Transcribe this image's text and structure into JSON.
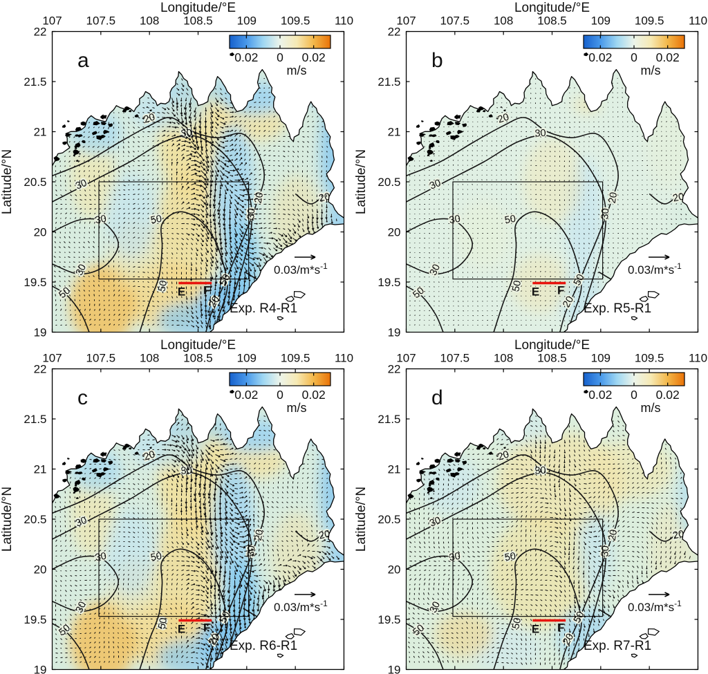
{
  "figure": {
    "x_axis": {
      "label": "Longitude/°E",
      "ticks": [
        "107",
        "107.5",
        "108",
        "108.5",
        "109",
        "109.5",
        "110"
      ]
    },
    "y_axis": {
      "label": "Latitude/°N",
      "ticks": [
        "22",
        "21.5",
        "21",
        "20.5",
        "20",
        "19.5",
        "19"
      ]
    },
    "colorbar": {
      "tick_labels": [
        "0.02",
        "0",
        "0.02"
      ],
      "unit": "m/s",
      "gradient": [
        "#1660cc",
        "#4898ea",
        "#9fd7f2",
        "#ecf4ea",
        "#f6e9b4",
        "#f3b84a",
        "#e97207"
      ]
    },
    "quiver_key": {
      "value": "0.03/m*s",
      "exponent": "-1"
    },
    "contour_levels": [
      "20",
      "30",
      "50"
    ],
    "transect": {
      "start": "E",
      "end": "F",
      "color": "#e8150f"
    },
    "panels": [
      {
        "letter": "a",
        "experiment": "Exp. R4-R1",
        "signal": "strong"
      },
      {
        "letter": "b",
        "experiment": "Exp. R5-R1",
        "signal": "weak"
      },
      {
        "letter": "c",
        "experiment": "Exp. R6-R1",
        "signal": "strong"
      },
      {
        "letter": "d",
        "experiment": "Exp. R7-R1",
        "signal": "moderate"
      }
    ]
  },
  "chart_data": [
    {
      "type": "heatmap",
      "panel": "a",
      "title": "Exp. R4-R1",
      "xlabel": "Longitude/°E",
      "xlim": [
        107,
        110
      ],
      "ylabel": "Latitude/°N",
      "ylim": [
        19,
        22
      ],
      "value": "surface current difference magnitude (m/s) with vector overlay",
      "vlim": [
        -0.03,
        0.03
      ],
      "colorbar_ticks": [
        -0.02,
        0,
        0.02
      ],
      "colorbar_unit": "m/s",
      "vector_scale_label": "0.03/m*s^-1",
      "bathymetry_contours_m": [
        20,
        30,
        50
      ],
      "region_box": {
        "lon": [
          107.5,
          109.0
        ],
        "lat": [
          19.5,
          20.5
        ]
      },
      "transect_EF": {
        "lat": 19.48,
        "lon": [
          108.3,
          108.64
        ]
      },
      "relative_signal": "strong difference band through gulf center"
    },
    {
      "type": "heatmap",
      "panel": "b",
      "title": "Exp. R5-R1",
      "xlabel": "Longitude/°E",
      "xlim": [
        107,
        110
      ],
      "ylabel": "Latitude/°N",
      "ylim": [
        19,
        22
      ],
      "value": "surface current difference magnitude (m/s) with vector overlay",
      "vlim": [
        -0.03,
        0.03
      ],
      "colorbar_ticks": [
        -0.02,
        0,
        0.02
      ],
      "colorbar_unit": "m/s",
      "vector_scale_label": "0.03/m*s^-1",
      "bathymetry_contours_m": [
        20,
        30,
        50
      ],
      "region_box": {
        "lon": [
          107.5,
          109.0
        ],
        "lat": [
          19.5,
          20.5
        ]
      },
      "transect_EF": {
        "lat": 19.48,
        "lon": [
          108.3,
          108.64
        ]
      },
      "relative_signal": "weak, near-zero differences"
    },
    {
      "type": "heatmap",
      "panel": "c",
      "title": "Exp. R6-R1",
      "xlabel": "Longitude/°E",
      "xlim": [
        107,
        110
      ],
      "ylabel": "Latitude/°N",
      "ylim": [
        19,
        22
      ],
      "value": "surface current difference magnitude (m/s) with vector overlay",
      "vlim": [
        -0.03,
        0.03
      ],
      "colorbar_ticks": [
        -0.02,
        0,
        0.02
      ],
      "colorbar_unit": "m/s",
      "vector_scale_label": "0.03/m*s^-1",
      "bathymetry_contours_m": [
        20,
        30,
        50
      ],
      "region_box": {
        "lon": [
          107.5,
          109.0
        ],
        "lat": [
          19.5,
          20.5
        ]
      },
      "transect_EF": {
        "lat": 19.48,
        "lon": [
          108.3,
          108.64
        ]
      },
      "relative_signal": "strong difference band through gulf center"
    },
    {
      "type": "heatmap",
      "panel": "d",
      "title": "Exp. R7-R1",
      "xlabel": "Longitude/°E",
      "xlim": [
        107,
        110
      ],
      "ylabel": "Latitude/°N",
      "ylim": [
        19,
        22
      ],
      "value": "surface current difference magnitude (m/s) with vector overlay",
      "vlim": [
        -0.03,
        0.03
      ],
      "colorbar_ticks": [
        -0.02,
        0,
        0.02
      ],
      "colorbar_unit": "m/s",
      "vector_scale_label": "0.03/m*s^-1",
      "bathymetry_contours_m": [
        20,
        30,
        50
      ],
      "region_box": {
        "lon": [
          107.5,
          109.0
        ],
        "lat": [
          19.5,
          20.5
        ]
      },
      "transect_EF": {
        "lat": 19.48,
        "lon": [
          108.3,
          108.64
        ]
      },
      "relative_signal": "moderate diffuse differences"
    }
  ]
}
